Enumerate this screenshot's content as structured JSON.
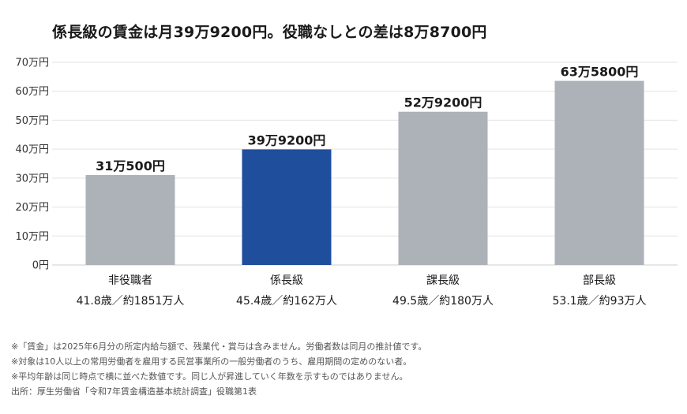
{
  "title": "係長級の賃金は月39万9200円。役職なしとの差は8万8700円",
  "chart_data": {
    "type": "bar",
    "title": "係長級の賃金は月39万9200円。役職なしとの差は8万8700円",
    "categories": [
      "非役職者",
      "係長級",
      "課長級",
      "部長級"
    ],
    "sublabels": [
      "41.8歳／約1851万人",
      "45.4歳／約162万人",
      "49.5歳／約180万人",
      "53.1歳／約93万人"
    ],
    "values": [
      310500,
      399200,
      529200,
      635800
    ],
    "data_labels": [
      "31万500円",
      "39万9200円",
      "52万9200円",
      "63万5800円"
    ],
    "colors": [
      "#adb2b8",
      "#1f4e9c",
      "#adb2b8",
      "#adb2b8"
    ],
    "ylim": [
      0,
      700000
    ],
    "yticks": [
      0,
      100000,
      200000,
      300000,
      400000,
      500000,
      600000,
      700000
    ],
    "ytick_labels": [
      "0円",
      "10万円",
      "20万円",
      "30万円",
      "40万円",
      "50万円",
      "60万円",
      "70万円"
    ],
    "grid": true,
    "grid_color": "#e3e3e3"
  },
  "notes": [
    "※「賃金」は2025年6月分の所定内給与額で、残業代・賞与は含みません。労働者数は同月の推計値です。",
    "※対象は10人以上の常用労働者を雇用する民営事業所の一般労働者のうち、雇用期間の定めのない者。",
    "※平均年齢は同じ時点で横に並べた数値です。同じ人が昇進していく年数を示すものではありません。",
    "出所：厚生労働省「令和7年賃金構造基本統計調査」役職第1表"
  ]
}
